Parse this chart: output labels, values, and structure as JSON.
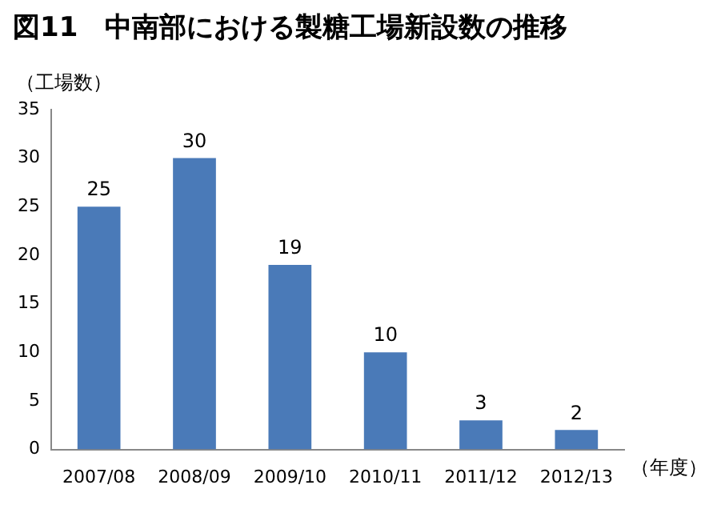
{
  "chart_data": {
    "type": "bar",
    "title": "図11　中南部における製糖工場新設数の推移",
    "ylabel": "（工場数）",
    "xlabel": "（年度）",
    "categories": [
      "2007/08",
      "2008/09",
      "2009/10",
      "2010/11",
      "2011/12",
      "2012/13"
    ],
    "values": [
      25,
      30,
      19,
      10,
      3,
      2
    ],
    "color": "#4a7ab8",
    "ylim": [
      0,
      35
    ],
    "yticks": [
      0,
      5,
      10,
      15,
      20,
      25,
      30,
      35
    ],
    "grid": false,
    "data_labels": true,
    "legend": false
  }
}
